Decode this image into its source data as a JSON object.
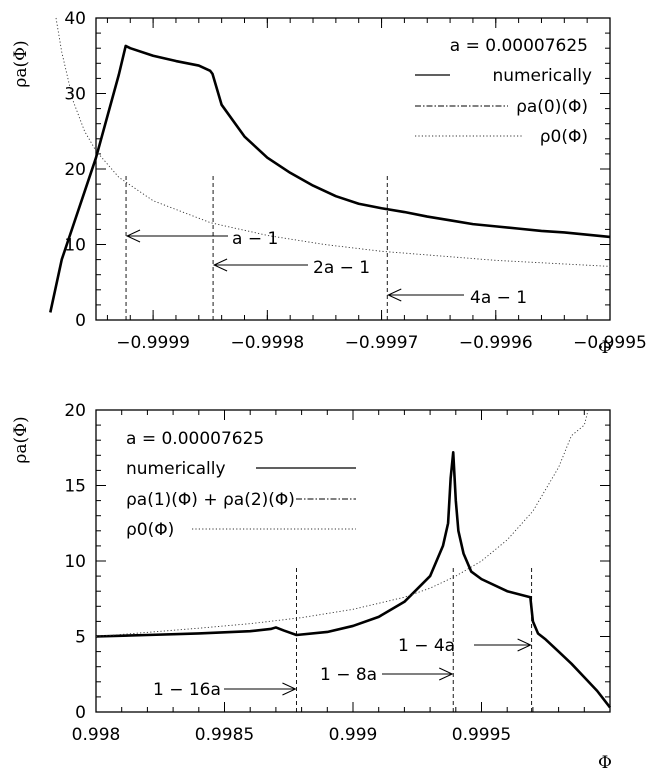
{
  "chart_data": [
    {
      "type": "line",
      "ylabel": "ρa(Φ)",
      "xlabel": "Φ",
      "xlim": [
        -0.99995,
        -0.9995
      ],
      "ylim": [
        0,
        40
      ],
      "xticks": [
        -0.9999,
        -0.9998,
        -0.9997,
        -0.9996,
        -0.9995
      ],
      "xtick_labels": [
        "−0.9999",
        "−0.9998",
        "−0.9997",
        "−0.9996",
        "−0.9995"
      ],
      "yticks": [
        0,
        10,
        20,
        30,
        40
      ],
      "ytick_labels": [
        "0",
        "10",
        "20",
        "30",
        "40"
      ],
      "legend_position": "top-right",
      "legend": {
        "param": "a = 0.00007625",
        "entries": [
          "numerically",
          "ρa(0)(Φ)",
          "ρ0(Φ)"
        ]
      },
      "annotations": [
        {
          "text": "a − 1",
          "x": -0.9999237
        },
        {
          "text": "2a − 1",
          "x": -0.9998475
        },
        {
          "text": "4a − 1",
          "x": -0.999695
        }
      ],
      "series": [
        {
          "name": "numerically",
          "x": [
            -0.99999,
            -0.99998,
            -0.99997,
            -0.99996,
            -0.99995,
            -0.99994,
            -0.99993,
            -0.999924,
            -0.99992,
            -0.9999,
            -0.99988,
            -0.99986,
            -0.99985,
            -0.999848,
            -0.99984,
            -0.99982,
            -0.9998,
            -0.99978,
            -0.99976,
            -0.99974,
            -0.99972,
            -0.9997,
            -0.99968,
            -0.99966,
            -0.99964,
            -0.99962,
            -0.9996,
            -0.99958,
            -0.99956,
            -0.99954,
            -0.99952,
            -0.9995
          ],
          "y": [
            1,
            8,
            12.5,
            17,
            21.5,
            27,
            32.5,
            36.3,
            36,
            35,
            34.3,
            33.7,
            33,
            32.6,
            28.5,
            24.3,
            21.5,
            19.5,
            17.8,
            16.4,
            15.4,
            14.8,
            14.3,
            13.7,
            13.2,
            12.7,
            12.4,
            12.1,
            11.8,
            11.6,
            11.3,
            11
          ]
        },
        {
          "name": "ρa(0)(Φ)",
          "x": [
            -0.99999,
            -0.99998,
            -0.99997,
            -0.99996,
            -0.99995,
            -0.99994,
            -0.99993,
            -0.999924,
            -0.99992,
            -0.9999,
            -0.99988,
            -0.99986,
            -0.99985,
            -0.999848,
            -0.99984,
            -0.99982,
            -0.9998,
            -0.99978,
            -0.99976,
            -0.99974,
            -0.99972,
            -0.9997,
            -0.99968,
            -0.99966,
            -0.99964,
            -0.99962,
            -0.9996,
            -0.99958,
            -0.99956,
            -0.99954,
            -0.99952,
            -0.9995
          ],
          "y": [
            1,
            8,
            12.5,
            17,
            21.5,
            27,
            32.5,
            36.3,
            36,
            35,
            34.3,
            33.7,
            33,
            32.6,
            28.5,
            24.3,
            21.5,
            19.5,
            17.8,
            16.4,
            15.4,
            14.8,
            14.3,
            13.7,
            13.2,
            12.7,
            12.4,
            12.1,
            11.8,
            11.6,
            11.3,
            11
          ]
        },
        {
          "name": "ρ0(Φ)",
          "x": [
            -0.999985,
            -0.99998,
            -0.99997,
            -0.99996,
            -0.99995,
            -0.99993,
            -0.9999,
            -0.99985,
            -0.9998,
            -0.99975,
            -0.9997,
            -0.9996,
            -0.9995
          ],
          "y": [
            40,
            35.5,
            29,
            25,
            22.4,
            18.9,
            15.8,
            12.9,
            11.2,
            10.0,
            9.1,
            7.9,
            7.1
          ]
        }
      ]
    },
    {
      "type": "line",
      "ylabel": "ρa(Φ)",
      "xlabel": "Φ",
      "xlim": [
        0.998,
        1.0
      ],
      "ylim": [
        0,
        20
      ],
      "xticks": [
        0.998,
        0.9985,
        0.999,
        0.9995
      ],
      "xtick_labels": [
        "0.998",
        "0.9985",
        "0.999",
        "0.9995"
      ],
      "yticks": [
        0,
        5,
        10,
        15,
        20
      ],
      "ytick_labels": [
        "0",
        "5",
        "10",
        "15",
        "20"
      ],
      "legend_position": "top-left",
      "legend": {
        "param": "a = 0.00007625",
        "entries": [
          "numerically",
          "ρa(1)(Φ) + ρa(2)(Φ)",
          "ρ0(Φ)"
        ]
      },
      "annotations": [
        {
          "text": "1 − 16a",
          "x": 0.99878
        },
        {
          "text": "1 − 8a",
          "x": 0.99939
        },
        {
          "text": "1 − 4a",
          "x": 0.999695
        }
      ],
      "series": [
        {
          "name": "numerically",
          "x": [
            0.998,
            0.9982,
            0.9984,
            0.9986,
            0.99868,
            0.9987,
            0.99873,
            0.99878,
            0.9989,
            0.999,
            0.9991,
            0.9992,
            0.9993,
            0.99935,
            0.99937,
            0.99938,
            0.99939,
            0.9994,
            0.99941,
            0.99943,
            0.99946,
            0.9995,
            0.9996,
            0.99969,
            0.9997,
            0.99972,
            0.99975,
            0.9998,
            0.99985,
            0.9999,
            0.99995,
            1.0
          ],
          "y": [
            5.0,
            5.1,
            5.2,
            5.35,
            5.5,
            5.6,
            5.4,
            5.1,
            5.3,
            5.7,
            6.3,
            7.3,
            9.0,
            11.0,
            12.5,
            15.5,
            17.2,
            14.0,
            12.0,
            10.5,
            9.3,
            8.8,
            8.0,
            7.6,
            6.0,
            5.2,
            4.8,
            4.0,
            3.2,
            2.3,
            1.4,
            0.3
          ]
        },
        {
          "name": "ρa(1)(Φ) + ρa(2)(Φ)",
          "x": [
            0.998,
            0.9982,
            0.9984,
            0.9986,
            0.99868,
            0.9987,
            0.99873,
            0.99878,
            0.9989,
            0.999,
            0.9991,
            0.9992,
            0.9993,
            0.99935,
            0.99937,
            0.99938,
            0.99939,
            0.9994,
            0.99941,
            0.99943,
            0.99946,
            0.9995,
            0.9996,
            0.99969,
            0.9997,
            0.99972,
            0.99975,
            0.9998,
            0.99985,
            0.9999,
            0.99995,
            1.0
          ],
          "y": [
            5.0,
            5.1,
            5.2,
            5.35,
            5.5,
            5.6,
            5.4,
            5.1,
            5.3,
            5.7,
            6.3,
            7.3,
            9.0,
            11.0,
            12.5,
            15.5,
            17.2,
            14.0,
            12.0,
            10.5,
            9.3,
            8.8,
            8.0,
            7.6,
            6.0,
            5.2,
            4.8,
            4.0,
            3.2,
            2.3,
            1.4,
            0.3
          ]
        },
        {
          "name": "ρ0(Φ)",
          "x": [
            0.998,
            0.9984,
            0.9986,
            0.9988,
            0.999,
            0.9992,
            0.9993,
            0.9994,
            0.9995,
            0.9996,
            0.9997,
            0.9998,
            0.99985,
            0.9999,
            0.999915
          ],
          "y": [
            5.0,
            5.55,
            5.85,
            6.25,
            6.8,
            7.6,
            8.2,
            9.0,
            10.0,
            11.4,
            13.3,
            16.2,
            18.3,
            19.0,
            20.0
          ]
        }
      ]
    }
  ]
}
